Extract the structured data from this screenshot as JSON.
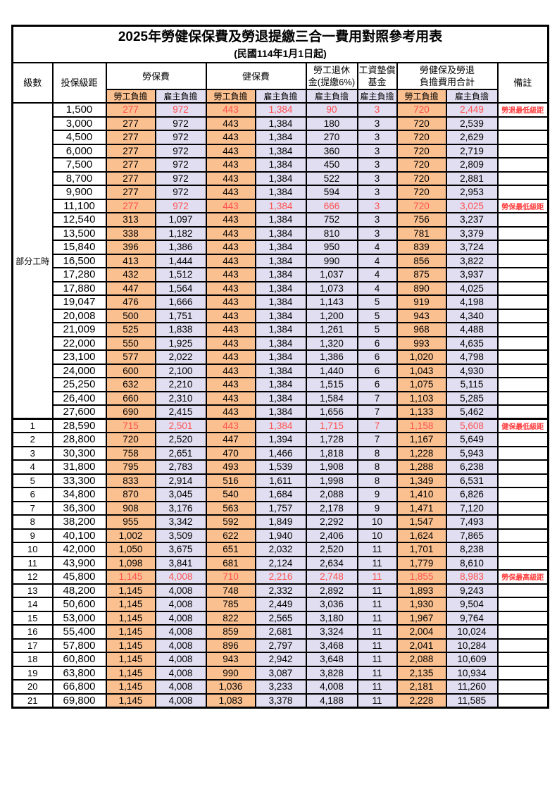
{
  "title": "2025年勞健保保費及勞退提繳三合一費用對照參考用表",
  "subtitle": "(民國114年1月1日起)",
  "colors": {
    "employee_col_bg": "#FAC090",
    "employer_col_bg": "#E0DEF0",
    "highlight_value_text": "#FF5050",
    "remark_text": "#FF4040",
    "border": "#000000"
  },
  "header": {
    "level": "級數",
    "bracket": "投保級距",
    "labor_fee": "勞保費",
    "health_fee": "健保費",
    "pension_line1": "勞工退休",
    "pension_line2": "金(提繳6%)",
    "wage_fund_line1": "工資墊償",
    "wage_fund_line2": "基金",
    "total_line1": "勞健保及勞退",
    "total_line2": "負擔費用合計",
    "remark": "備註",
    "employee_share": "勞工負擔",
    "employer_share": "雇主負擔"
  },
  "part_time": {
    "label": "部分工時",
    "rowspan": 23
  },
  "rows": [
    {
      "level": "",
      "bracket": "1,500",
      "values": [
        "277",
        "972",
        "443",
        "1,384",
        "90",
        "3",
        "720",
        "2,449"
      ],
      "remark": "勞退最低級距",
      "red": true
    },
    {
      "level": "",
      "bracket": "3,000",
      "values": [
        "277",
        "972",
        "443",
        "1,384",
        "180",
        "3",
        "720",
        "2,539"
      ],
      "remark": "",
      "red": false
    },
    {
      "level": "",
      "bracket": "4,500",
      "values": [
        "277",
        "972",
        "443",
        "1,384",
        "270",
        "3",
        "720",
        "2,629"
      ],
      "remark": "",
      "red": false
    },
    {
      "level": "",
      "bracket": "6,000",
      "values": [
        "277",
        "972",
        "443",
        "1,384",
        "360",
        "3",
        "720",
        "2,719"
      ],
      "remark": "",
      "red": false
    },
    {
      "level": "",
      "bracket": "7,500",
      "values": [
        "277",
        "972",
        "443",
        "1,384",
        "450",
        "3",
        "720",
        "2,809"
      ],
      "remark": "",
      "red": false
    },
    {
      "level": "",
      "bracket": "8,700",
      "values": [
        "277",
        "972",
        "443",
        "1,384",
        "522",
        "3",
        "720",
        "2,881"
      ],
      "remark": "",
      "red": false
    },
    {
      "level": "",
      "bracket": "9,900",
      "values": [
        "277",
        "972",
        "443",
        "1,384",
        "594",
        "3",
        "720",
        "2,953"
      ],
      "remark": "",
      "red": false
    },
    {
      "level": "",
      "bracket": "11,100",
      "values": [
        "277",
        "972",
        "443",
        "1,384",
        "666",
        "3",
        "720",
        "3,025"
      ],
      "remark": "勞保最低級距",
      "red": true
    },
    {
      "level": "",
      "bracket": "12,540",
      "values": [
        "313",
        "1,097",
        "443",
        "1,384",
        "752",
        "3",
        "756",
        "3,237"
      ],
      "remark": "",
      "red": false
    },
    {
      "level": "",
      "bracket": "13,500",
      "values": [
        "338",
        "1,182",
        "443",
        "1,384",
        "810",
        "3",
        "781",
        "3,379"
      ],
      "remark": "",
      "red": false
    },
    {
      "level": "",
      "bracket": "15,840",
      "values": [
        "396",
        "1,386",
        "443",
        "1,384",
        "950",
        "4",
        "839",
        "3,724"
      ],
      "remark": "",
      "red": false
    },
    {
      "level": "",
      "bracket": "16,500",
      "values": [
        "413",
        "1,444",
        "443",
        "1,384",
        "990",
        "4",
        "856",
        "3,822"
      ],
      "remark": "",
      "red": false
    },
    {
      "level": "",
      "bracket": "17,280",
      "values": [
        "432",
        "1,512",
        "443",
        "1,384",
        "1,037",
        "4",
        "875",
        "3,937"
      ],
      "remark": "",
      "red": false
    },
    {
      "level": "",
      "bracket": "17,880",
      "values": [
        "447",
        "1,564",
        "443",
        "1,384",
        "1,073",
        "4",
        "890",
        "4,025"
      ],
      "remark": "",
      "red": false
    },
    {
      "level": "",
      "bracket": "19,047",
      "values": [
        "476",
        "1,666",
        "443",
        "1,384",
        "1,143",
        "5",
        "919",
        "4,198"
      ],
      "remark": "",
      "red": false
    },
    {
      "level": "",
      "bracket": "20,008",
      "values": [
        "500",
        "1,751",
        "443",
        "1,384",
        "1,200",
        "5",
        "943",
        "4,340"
      ],
      "remark": "",
      "red": false
    },
    {
      "level": "",
      "bracket": "21,009",
      "values": [
        "525",
        "1,838",
        "443",
        "1,384",
        "1,261",
        "5",
        "968",
        "4,488"
      ],
      "remark": "",
      "red": false
    },
    {
      "level": "",
      "bracket": "22,000",
      "values": [
        "550",
        "1,925",
        "443",
        "1,384",
        "1,320",
        "6",
        "993",
        "4,635"
      ],
      "remark": "",
      "red": false
    },
    {
      "level": "",
      "bracket": "23,100",
      "values": [
        "577",
        "2,022",
        "443",
        "1,384",
        "1,386",
        "6",
        "1,020",
        "4,798"
      ],
      "remark": "",
      "red": false
    },
    {
      "level": "",
      "bracket": "24,000",
      "values": [
        "600",
        "2,100",
        "443",
        "1,384",
        "1,440",
        "6",
        "1,043",
        "4,930"
      ],
      "remark": "",
      "red": false
    },
    {
      "level": "",
      "bracket": "25,250",
      "values": [
        "632",
        "2,210",
        "443",
        "1,384",
        "1,515",
        "6",
        "1,075",
        "5,115"
      ],
      "remark": "",
      "red": false
    },
    {
      "level": "",
      "bracket": "26,400",
      "values": [
        "660",
        "2,310",
        "443",
        "1,384",
        "1,584",
        "7",
        "1,103",
        "5,285"
      ],
      "remark": "",
      "red": false
    },
    {
      "level": "",
      "bracket": "27,600",
      "values": [
        "690",
        "2,415",
        "443",
        "1,384",
        "1,656",
        "7",
        "1,133",
        "5,462"
      ],
      "remark": "",
      "red": false
    },
    {
      "level": "1",
      "bracket": "28,590",
      "values": [
        "715",
        "2,501",
        "443",
        "1,384",
        "1,715",
        "7",
        "1,158",
        "5,608"
      ],
      "remark": "健保最低級距",
      "red": true
    },
    {
      "level": "2",
      "bracket": "28,800",
      "values": [
        "720",
        "2,520",
        "447",
        "1,394",
        "1,728",
        "7",
        "1,167",
        "5,649"
      ],
      "remark": "",
      "red": false
    },
    {
      "level": "3",
      "bracket": "30,300",
      "values": [
        "758",
        "2,651",
        "470",
        "1,466",
        "1,818",
        "8",
        "1,228",
        "5,943"
      ],
      "remark": "",
      "red": false
    },
    {
      "level": "4",
      "bracket": "31,800",
      "values": [
        "795",
        "2,783",
        "493",
        "1,539",
        "1,908",
        "8",
        "1,288",
        "6,238"
      ],
      "remark": "",
      "red": false
    },
    {
      "level": "5",
      "bracket": "33,300",
      "values": [
        "833",
        "2,914",
        "516",
        "1,611",
        "1,998",
        "8",
        "1,349",
        "6,531"
      ],
      "remark": "",
      "red": false
    },
    {
      "level": "6",
      "bracket": "34,800",
      "values": [
        "870",
        "3,045",
        "540",
        "1,684",
        "2,088",
        "9",
        "1,410",
        "6,826"
      ],
      "remark": "",
      "red": false
    },
    {
      "level": "7",
      "bracket": "36,300",
      "values": [
        "908",
        "3,176",
        "563",
        "1,757",
        "2,178",
        "9",
        "1,471",
        "7,120"
      ],
      "remark": "",
      "red": false
    },
    {
      "level": "8",
      "bracket": "38,200",
      "values": [
        "955",
        "3,342",
        "592",
        "1,849",
        "2,292",
        "10",
        "1,547",
        "7,493"
      ],
      "remark": "",
      "red": false
    },
    {
      "level": "9",
      "bracket": "40,100",
      "values": [
        "1,002",
        "3,509",
        "622",
        "1,940",
        "2,406",
        "10",
        "1,624",
        "7,865"
      ],
      "remark": "",
      "red": false
    },
    {
      "level": "10",
      "bracket": "42,000",
      "values": [
        "1,050",
        "3,675",
        "651",
        "2,032",
        "2,520",
        "11",
        "1,701",
        "8,238"
      ],
      "remark": "",
      "red": false
    },
    {
      "level": "11",
      "bracket": "43,900",
      "values": [
        "1,098",
        "3,841",
        "681",
        "2,124",
        "2,634",
        "11",
        "1,779",
        "8,610"
      ],
      "remark": "",
      "red": false
    },
    {
      "level": "12",
      "bracket": "45,800",
      "values": [
        "1,145",
        "4,008",
        "710",
        "2,216",
        "2,748",
        "11",
        "1,855",
        "8,983"
      ],
      "remark": "勞保最高級距",
      "red": true
    },
    {
      "level": "13",
      "bracket": "48,200",
      "values": [
        "1,145",
        "4,008",
        "748",
        "2,332",
        "2,892",
        "11",
        "1,893",
        "9,243"
      ],
      "remark": "",
      "red": false
    },
    {
      "level": "14",
      "bracket": "50,600",
      "values": [
        "1,145",
        "4,008",
        "785",
        "2,449",
        "3,036",
        "11",
        "1,930",
        "9,504"
      ],
      "remark": "",
      "red": false
    },
    {
      "level": "15",
      "bracket": "53,000",
      "values": [
        "1,145",
        "4,008",
        "822",
        "2,565",
        "3,180",
        "11",
        "1,967",
        "9,764"
      ],
      "remark": "",
      "red": false
    },
    {
      "level": "16",
      "bracket": "55,400",
      "values": [
        "1,145",
        "4,008",
        "859",
        "2,681",
        "3,324",
        "11",
        "2,004",
        "10,024"
      ],
      "remark": "",
      "red": false
    },
    {
      "level": "17",
      "bracket": "57,800",
      "values": [
        "1,145",
        "4,008",
        "896",
        "2,797",
        "3,468",
        "11",
        "2,041",
        "10,284"
      ],
      "remark": "",
      "red": false
    },
    {
      "level": "18",
      "bracket": "60,800",
      "values": [
        "1,145",
        "4,008",
        "943",
        "2,942",
        "3,648",
        "11",
        "2,088",
        "10,609"
      ],
      "remark": "",
      "red": false
    },
    {
      "level": "19",
      "bracket": "63,800",
      "values": [
        "1,145",
        "4,008",
        "990",
        "3,087",
        "3,828",
        "11",
        "2,135",
        "10,934"
      ],
      "remark": "",
      "red": false
    },
    {
      "level": "20",
      "bracket": "66,800",
      "values": [
        "1,145",
        "4,008",
        "1,036",
        "3,233",
        "4,008",
        "11",
        "2,181",
        "11,260"
      ],
      "remark": "",
      "red": false
    },
    {
      "level": "21",
      "bracket": "69,800",
      "values": [
        "1,145",
        "4,008",
        "1,083",
        "3,378",
        "4,188",
        "11",
        "2,228",
        "11,585"
      ],
      "remark": "",
      "red": false
    }
  ]
}
